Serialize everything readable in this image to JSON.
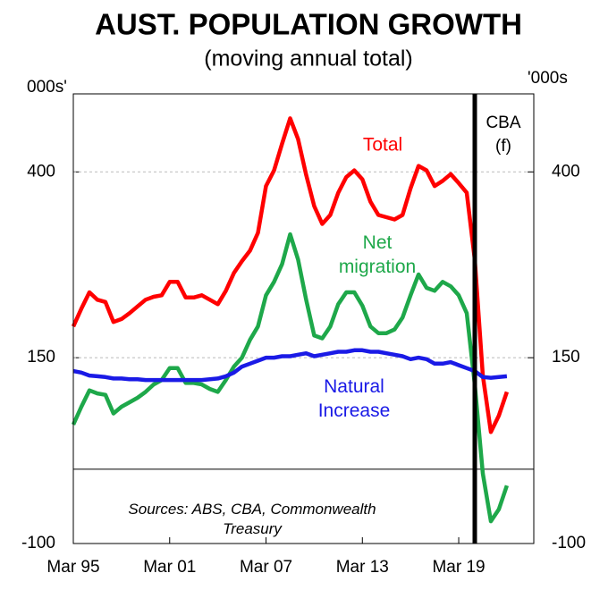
{
  "chart_data": {
    "type": "line",
    "title": "AUST. POPULATION GROWTH",
    "subtitle": "(moving annual total)",
    "y_label": "000s'",
    "y2_label": "'000s",
    "annotation": "Sources: ABS, CBA, Commonwealth Treasury",
    "forecast_label": "CBA (f)",
    "forecast_start": 50,
    "hlines": [
      0
    ],
    "categories": [
      "Mar 95",
      null,
      null,
      null,
      null,
      null,
      null,
      null,
      null,
      null,
      null,
      null,
      "Mar 01",
      null,
      null,
      null,
      null,
      null,
      null,
      null,
      null,
      null,
      null,
      null,
      "Mar 07",
      null,
      null,
      null,
      null,
      null,
      null,
      null,
      null,
      null,
      null,
      null,
      "Mar 13",
      null,
      null,
      null,
      null,
      null,
      null,
      null,
      null,
      null,
      null,
      null,
      "Mar 19",
      null,
      null,
      null,
      null,
      null,
      null
    ],
    "series": [
      {
        "name": "Total",
        "color": "#ff0000",
        "values": [
          192,
          216,
          238,
          228,
          225,
          198,
          202,
          210,
          219,
          228,
          232,
          234,
          252,
          252,
          231,
          231,
          234,
          228,
          222,
          240,
          264,
          280,
          294,
          318,
          381,
          402,
          438,
          472,
          444,
          396,
          354,
          330,
          342,
          372,
          393,
          402,
          390,
          360,
          342,
          339,
          336,
          342,
          378,
          408,
          402,
          381,
          388,
          397,
          385,
          372,
          282,
          126,
          50,
          72,
          104
        ]
      },
      {
        "name": "Net migration",
        "color": "#1ea84a",
        "values": [
          60,
          84,
          106,
          102,
          100,
          75,
          84,
          90,
          96,
          104,
          114,
          120,
          136,
          136,
          116,
          116,
          114,
          108,
          104,
          120,
          138,
          150,
          174,
          192,
          234,
          252,
          276,
          316,
          282,
          228,
          180,
          176,
          192,
          222,
          238,
          238,
          220,
          192,
          183,
          183,
          188,
          204,
          234,
          262,
          244,
          240,
          252,
          246,
          234,
          210,
          114,
          -6,
          -70,
          -54,
          -22
        ]
      },
      {
        "name": "Natural Increase",
        "color": "#1a1ae6",
        "values": [
          132,
          130,
          126,
          125,
          124,
          122,
          122,
          121,
          121,
          120,
          120,
          120,
          120,
          120,
          120,
          120,
          120,
          121,
          122,
          125,
          130,
          138,
          142,
          146,
          150,
          150,
          152,
          152,
          154,
          156,
          152,
          154,
          156,
          158,
          158,
          160,
          160,
          158,
          158,
          156,
          154,
          152,
          148,
          150,
          148,
          142,
          142,
          144,
          140,
          136,
          132,
          124,
          123,
          124,
          125
        ]
      }
    ],
    "ylim": [
      -100,
      505
    ],
    "yticks": [
      -100,
      150,
      400
    ],
    "y2lim": [
      -100,
      505
    ],
    "y2ticks": [
      -100,
      150,
      400
    ],
    "grid": true
  }
}
